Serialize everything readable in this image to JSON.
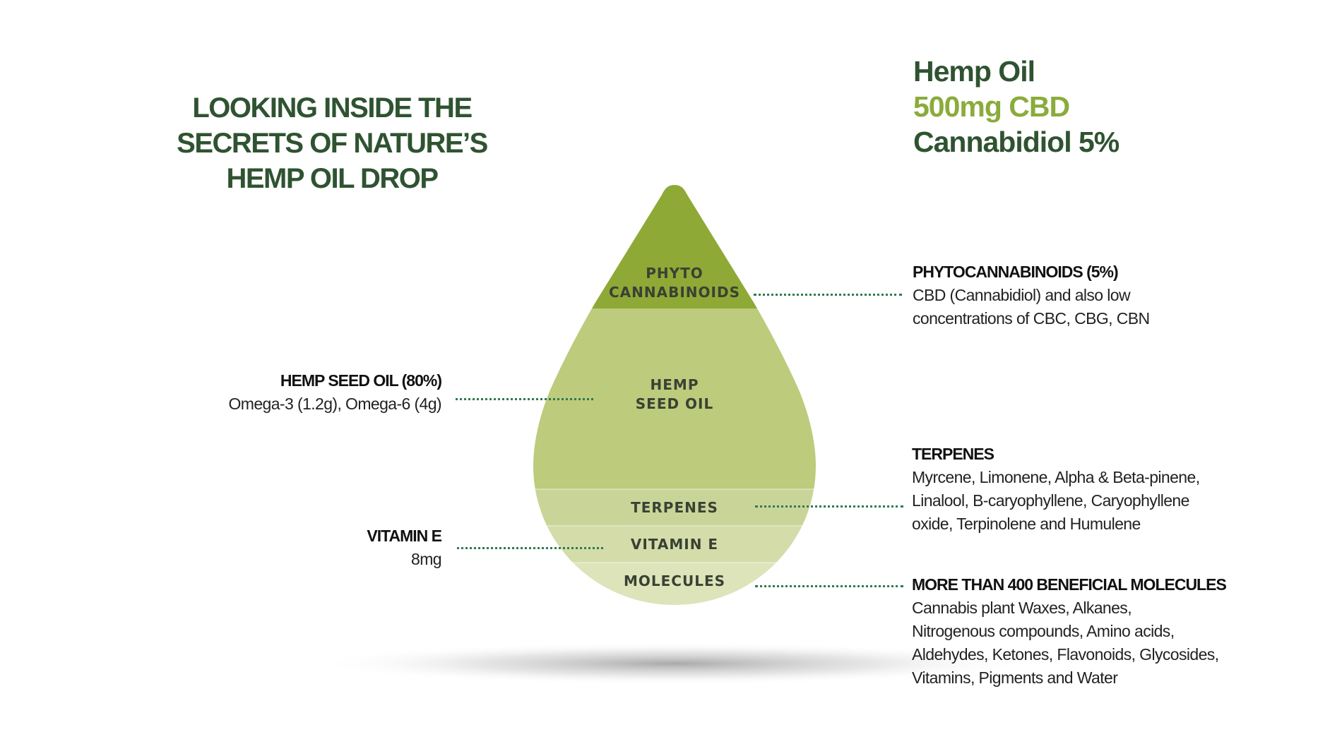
{
  "main_title": {
    "line1": "LOOKING INSIDE THE",
    "line2": "SECRETS OF NATURE’S",
    "line3": "HEMP OIL DROP"
  },
  "product": {
    "line1": "Hemp Oil",
    "line2": "500mg CBD",
    "line3": "Cannabidiol 5%"
  },
  "colors": {
    "dark_green": "#2f5331",
    "accent_green": "#8bab3c",
    "layer_phyto": "#8fa936",
    "layer_seed_oil": "#bccb7c",
    "layer_terpenes": "#c9d598",
    "layer_vitamin_e": "#d4ddaa",
    "layer_molecules": "#dde4ba",
    "dotted_line": "#2f7a52"
  },
  "drop_layers": {
    "phyto": {
      "line1": "PHYTO",
      "line2": "CANNABINOIDS"
    },
    "seed_oil": {
      "line1": "HEMP",
      "line2": "SEED OIL"
    },
    "terpenes": "TERPENES",
    "vitamin_e": "VITAMIN E",
    "molecules": "MOLECULES"
  },
  "annotations": {
    "phytocannabinoids": {
      "heading": "PHYTOCANNABINOIDS (5%)",
      "line1": "CBD (Cannabidiol) and also low",
      "line2": "concentrations of CBC, CBG, CBN"
    },
    "hemp_seed_oil": {
      "heading": "HEMP SEED OIL (80%)",
      "line1": "Omega-3 (1.2g), Omega-6 (4g)"
    },
    "terpenes": {
      "heading": "TERPENES",
      "line1": "Myrcene, Limonene, Alpha & Beta-pinene,",
      "line2": "Linalool, B-caryophyllene, Caryophyllene",
      "line3": "oxide, Terpinolene and Humulene"
    },
    "vitamin_e": {
      "heading": "VITAMIN E",
      "line1": "8mg"
    },
    "molecules": {
      "heading": "MORE THAN 400  BENEFICIAL MOLECULES",
      "line1": "Cannabis plant Waxes, Alkanes,",
      "line2": "Nitrogenous compounds, Amino acids,",
      "line3": "Aldehydes, Ketones, Flavonoids, Glycosides,",
      "line4": "Vitamins, Pigments and Water"
    }
  }
}
